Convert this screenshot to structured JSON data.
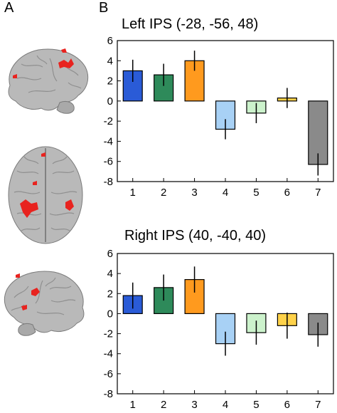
{
  "panels": {
    "a": "A",
    "b": "B"
  },
  "colors": {
    "bar_fills": [
      "#2a5bd7",
      "#2e8a5a",
      "#ff9a1e",
      "#a8d1f5",
      "#ccf2cc",
      "#ffd24a",
      "#8a8a8a"
    ],
    "brain_base": "#b9b9b9",
    "brain_shade": "#8f8f8f",
    "activation": "#e8231f"
  },
  "brain_views": [
    "left-lateral",
    "dorsal",
    "right-lateral"
  ],
  "chart_data": [
    {
      "type": "bar",
      "title": "Left IPS (-28, -56, 48)",
      "categories": [
        "1",
        "2",
        "3",
        "4",
        "5",
        "6",
        "7"
      ],
      "values": [
        3.0,
        2.6,
        4.0,
        -2.8,
        -1.2,
        0.3,
        -6.3
      ],
      "errors": [
        1.1,
        1.1,
        1.0,
        1.0,
        1.0,
        1.0,
        1.1
      ],
      "ylim": [
        -8,
        6
      ],
      "yticks": [
        -8,
        -6,
        -4,
        -2,
        0,
        2,
        4,
        6
      ],
      "xlabel": "",
      "ylabel": ""
    },
    {
      "type": "bar",
      "title": "Right IPS (40, -40, 40)",
      "categories": [
        "1",
        "2",
        "3",
        "4",
        "5",
        "6",
        "7"
      ],
      "values": [
        1.8,
        2.6,
        3.4,
        -3.0,
        -1.9,
        -1.2,
        -2.1
      ],
      "errors": [
        1.3,
        1.3,
        1.3,
        1.2,
        1.2,
        1.3,
        1.2
      ],
      "ylim": [
        -8,
        6
      ],
      "yticks": [
        -8,
        -6,
        -4,
        -2,
        0,
        2,
        4,
        6
      ],
      "xlabel": "",
      "ylabel": ""
    }
  ]
}
